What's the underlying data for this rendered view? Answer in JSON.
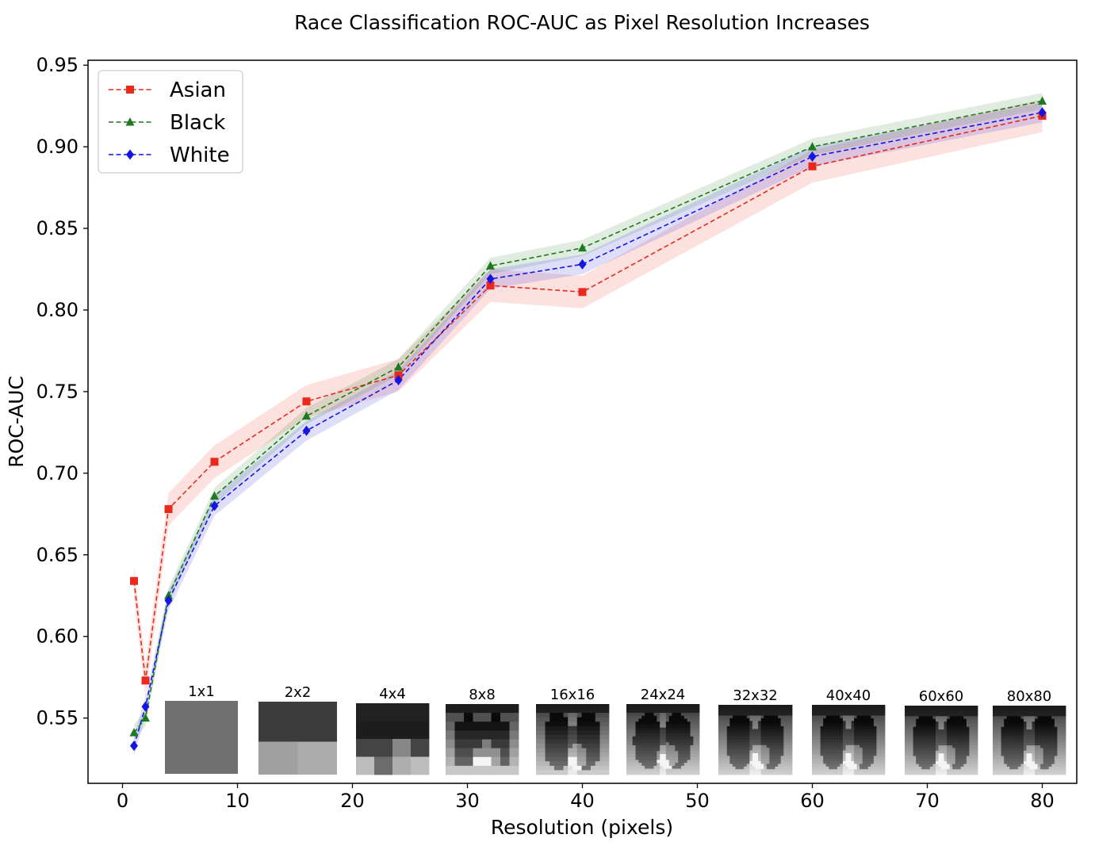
{
  "chart_data": {
    "type": "line",
    "title": "Race Classification ROC-AUC as Pixel Resolution Increases",
    "xlabel": "Resolution (pixels)",
    "ylabel": "ROC-AUC",
    "xlim": [
      -3,
      83
    ],
    "ylim": [
      0.51,
      0.953
    ],
    "x_ticks": [
      0,
      10,
      20,
      30,
      40,
      50,
      60,
      70,
      80
    ],
    "y_ticks": [
      0.55,
      0.6,
      0.65,
      0.7,
      0.75,
      0.8,
      0.85,
      0.9,
      0.95
    ],
    "grid": false,
    "legend_position": "top-left",
    "x": [
      1,
      2,
      4,
      8,
      16,
      24,
      32,
      40,
      60,
      80
    ],
    "series": [
      {
        "name": "Asian",
        "color": "#e8291c",
        "marker": "square",
        "linestyle": "dashed",
        "values": [
          0.634,
          0.573,
          0.678,
          0.707,
          0.744,
          0.76,
          0.815,
          0.811,
          0.888,
          0.919
        ],
        "band": 0.01
      },
      {
        "name": "Black",
        "color": "#1e7a1e",
        "marker": "triangle",
        "linestyle": "dashed",
        "values": [
          0.541,
          0.55,
          0.625,
          0.686,
          0.735,
          0.765,
          0.827,
          0.838,
          0.9,
          0.928
        ],
        "band": 0.005
      },
      {
        "name": "White",
        "color": "#1515e0",
        "marker": "diamond",
        "linestyle": "dashed",
        "values": [
          0.533,
          0.557,
          0.622,
          0.68,
          0.726,
          0.757,
          0.819,
          0.828,
          0.894,
          0.921
        ],
        "band": 0.006
      }
    ],
    "inset_images": [
      {
        "label": "1x1",
        "grid": 1
      },
      {
        "label": "2x2",
        "grid": 2
      },
      {
        "label": "4x4",
        "grid": 4
      },
      {
        "label": "8x8",
        "grid": 8
      },
      {
        "label": "16x16",
        "grid": 16
      },
      {
        "label": "24x24",
        "grid": 24
      },
      {
        "label": "32x32",
        "grid": 32
      },
      {
        "label": "40x40",
        "grid": 40
      },
      {
        "label": "60x60",
        "grid": 60
      },
      {
        "label": "80x80",
        "grid": 80
      }
    ]
  }
}
